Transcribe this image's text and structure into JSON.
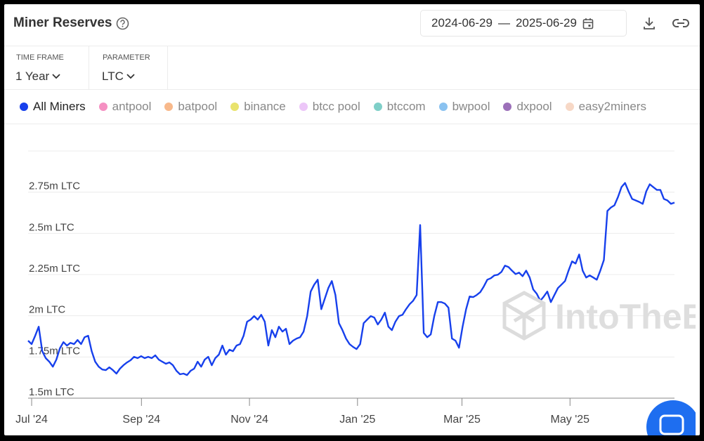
{
  "header": {
    "title": "Miner Reserves",
    "date_start": "2024-06-29",
    "date_separator": "—",
    "date_end": "2025-06-29"
  },
  "controls": [
    {
      "label": "TIME FRAME",
      "value": "1 Year"
    },
    {
      "label": "PARAMETER",
      "value": "LTC"
    }
  ],
  "watermark": "IntoTheBlock",
  "chart_data": {
    "type": "line",
    "xlim": [
      "2024-06-29",
      "2025-06-29"
    ],
    "xticks": [
      {
        "value": "2024-07",
        "label": "Jul '24"
      },
      {
        "value": "2024-09",
        "label": "Sep '24"
      },
      {
        "value": "2024-11",
        "label": "Nov '24"
      },
      {
        "value": "2025-01",
        "label": "Jan '25"
      },
      {
        "value": "2025-03",
        "label": "Mar '25"
      },
      {
        "value": "2025-05",
        "label": "May '25"
      }
    ],
    "ylim": [
      1.5,
      3.0
    ],
    "yticks": [
      {
        "value": 1.5,
        "label": "1.5m LTC"
      },
      {
        "value": 1.75,
        "label": "1.75m LTC"
      },
      {
        "value": 2.0,
        "label": "2m LTC"
      },
      {
        "value": 2.25,
        "label": "2.25m LTC"
      },
      {
        "value": 2.5,
        "label": "2.5m LTC"
      },
      {
        "value": 2.75,
        "label": "2.75m LTC"
      }
    ],
    "grid": true,
    "series": [
      {
        "name": "All Miners",
        "color": "#1740ec",
        "values": [
          1.849,
          1.828,
          1.879,
          1.934,
          1.785,
          1.743,
          1.721,
          1.691,
          1.734,
          1.802,
          1.84,
          1.819,
          1.836,
          1.828,
          1.853,
          1.828,
          1.87,
          1.879,
          1.785,
          1.721,
          1.691,
          1.674,
          1.67,
          1.687,
          1.67,
          1.649,
          1.679,
          1.7,
          1.717,
          1.73,
          1.751,
          1.743,
          1.755,
          1.743,
          1.751,
          1.743,
          1.76,
          1.734,
          1.721,
          1.709,
          1.717,
          1.7,
          1.666,
          1.645,
          1.649,
          1.64,
          1.666,
          1.679,
          1.721,
          1.691,
          1.734,
          1.751,
          1.7,
          1.743,
          1.764,
          1.819,
          1.764,
          1.794,
          1.785,
          1.819,
          1.828,
          1.879,
          1.964,
          1.977,
          1.998,
          1.977,
          2.006,
          1.964,
          1.819,
          1.913,
          1.87,
          1.934,
          1.904,
          1.921,
          1.828,
          1.849,
          1.862,
          1.87,
          1.904,
          1.998,
          2.147,
          2.189,
          2.219,
          2.04,
          2.104,
          2.168,
          2.211,
          2.126,
          1.955,
          1.913,
          1.862,
          1.828,
          1.811,
          1.798,
          1.828,
          1.955,
          1.977,
          1.998,
          1.989,
          1.947,
          1.977,
          2.019,
          1.934,
          1.913,
          1.964,
          1.998,
          2.006,
          2.04,
          2.07,
          2.091,
          2.126,
          2.551,
          1.896,
          1.87,
          1.887,
          1.998,
          2.083,
          2.083,
          2.074,
          2.049,
          1.862,
          1.849,
          1.806,
          1.934,
          2.04,
          2.117,
          2.113,
          2.126,
          2.143,
          2.177,
          2.219,
          2.228,
          2.245,
          2.249,
          2.266,
          2.304,
          2.296,
          2.274,
          2.253,
          2.262,
          2.24,
          2.274,
          2.232,
          2.16,
          2.134,
          2.091,
          2.117,
          2.147,
          2.083,
          2.126,
          2.168,
          2.189,
          2.211,
          2.274,
          2.33,
          2.317,
          2.372,
          2.274,
          2.232,
          2.245,
          2.232,
          2.219,
          2.274,
          2.338,
          2.636,
          2.657,
          2.67,
          2.721,
          2.781,
          2.806,
          2.755,
          2.709,
          2.7,
          2.691,
          2.679,
          2.755,
          2.798,
          2.781,
          2.764,
          2.764,
          2.709,
          2.7,
          2.679,
          2.687
        ]
      },
      {
        "name": "antpool",
        "color": "#f590c2"
      },
      {
        "name": "batpool",
        "color": "#f8b98b"
      },
      {
        "name": "binance",
        "color": "#e9e36d"
      },
      {
        "name": "btcc pool",
        "color": "#ecc6f8"
      },
      {
        "name": "btccom",
        "color": "#7fcfc8"
      },
      {
        "name": "bwpool",
        "color": "#8ac2f0"
      },
      {
        "name": "dxpool",
        "color": "#9c70b9"
      },
      {
        "name": "easy2miners",
        "color": "#f7d8c6"
      }
    ]
  }
}
